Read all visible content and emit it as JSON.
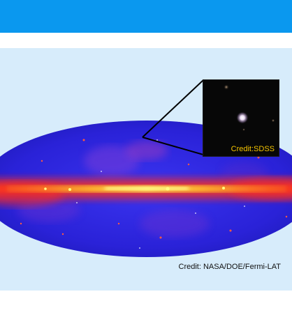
{
  "figure": {
    "main_credit": "Credit: NASA/DOE/Fermi-LAT",
    "inset_credit": "Credit:SDSS"
  },
  "colors": {
    "top_bar": "#0a98ef",
    "panel_background": "#d7ecfb",
    "sky_base": "#2b24e0",
    "galactic_plane": "#ff2a1a",
    "plane_core": "#ffe640",
    "inset_credit_text": "#f4c400"
  }
}
